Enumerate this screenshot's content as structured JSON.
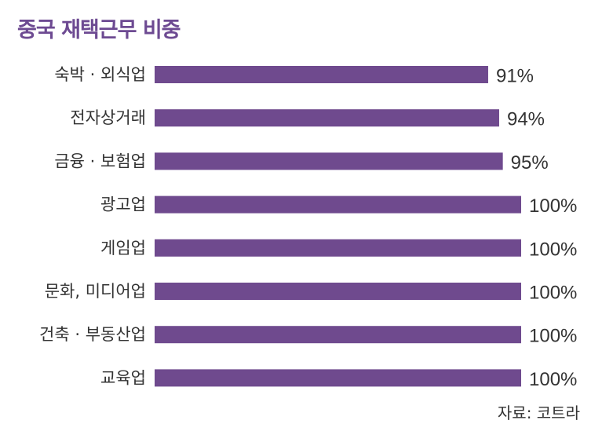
{
  "chart_data": {
    "type": "bar",
    "orientation": "horizontal",
    "title": "중국 재택근무 비중",
    "categories": [
      "숙박 · 외식업",
      "전자상거래",
      "금융 · 보험업",
      "광고업",
      "게임업",
      "문화, 미디어업",
      "건축 · 부동산업",
      "교육업"
    ],
    "values": [
      91,
      94,
      95,
      100,
      100,
      100,
      100,
      100
    ],
    "value_labels": [
      "91%",
      "94%",
      "95%",
      "100%",
      "100%",
      "100%",
      "100%",
      "100%"
    ],
    "xlim": [
      0,
      100
    ],
    "grid": false,
    "legend": "none",
    "bar_color": "#6f4a8e",
    "title_color": "#6d4a92",
    "source": "자료: 코트라"
  }
}
